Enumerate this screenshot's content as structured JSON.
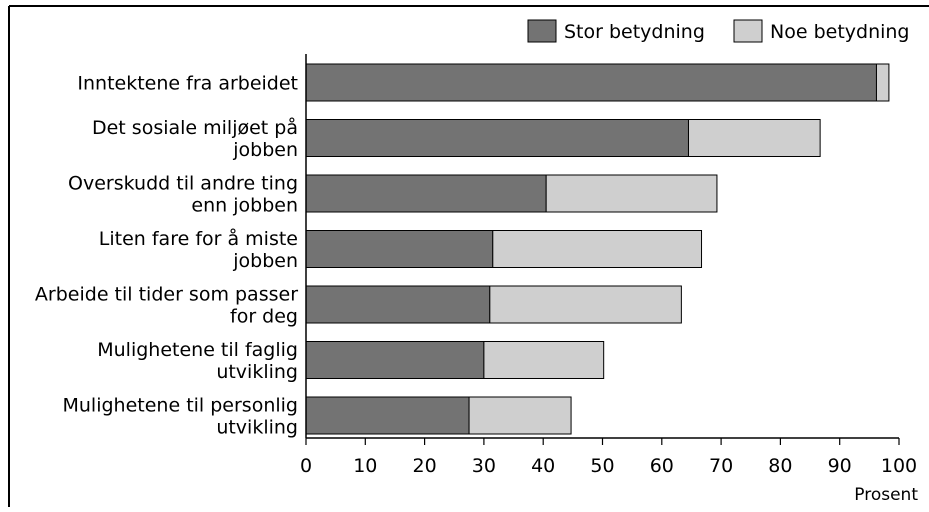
{
  "chart_data": {
    "type": "bar",
    "orientation": "horizontal",
    "stacked": true,
    "categories": [
      [
        "Inntektene fra arbeidet"
      ],
      [
        "Det sosiale miljøet på",
        "jobben"
      ],
      [
        "Overskudd til andre ting",
        "enn jobben"
      ],
      [
        "Liten fare for å miste",
        "jobben"
      ],
      [
        "Arbeide til tider som passer",
        "for deg"
      ],
      [
        "Mulighetene til faglig",
        "utvikling"
      ],
      [
        "Mulighetene til personlig",
        "utvikling"
      ]
    ],
    "series": [
      {
        "name": "Stor betydning",
        "values": [
          96.2,
          64.5,
          40.5,
          31.5,
          31,
          30,
          27.5
        ]
      },
      {
        "name": "Noe betydning",
        "values": [
          2.1,
          22.2,
          28.8,
          35.2,
          32.3,
          20.2,
          17.2
        ]
      }
    ],
    "xlabel": "Prosent",
    "ylabel": "",
    "xlim": [
      0,
      100
    ],
    "xticks": [
      0,
      10,
      20,
      30,
      40,
      50,
      60,
      70,
      80,
      90,
      100
    ],
    "legend_position": "top-right",
    "grid": false
  },
  "colors": {
    "stor": "#737373",
    "noe": "#cfcfcf",
    "stroke": "#000000"
  }
}
